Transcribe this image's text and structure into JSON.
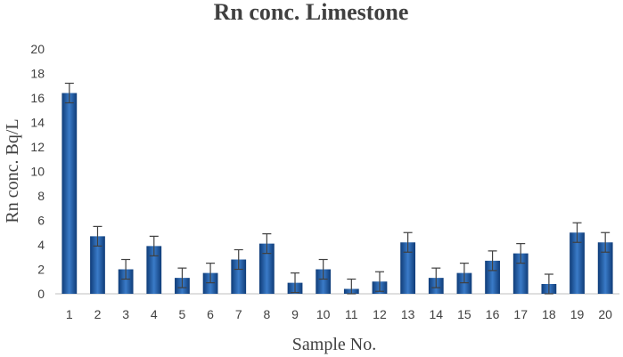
{
  "chart_data": {
    "type": "bar",
    "title": "Rn conc. Limestone",
    "xlabel": "Sample No.",
    "ylabel": "Rn conc. Bq/L",
    "categories": [
      "1",
      "2",
      "3",
      "4",
      "5",
      "6",
      "7",
      "8",
      "9",
      "10",
      "11",
      "12",
      "13",
      "14",
      "15",
      "16",
      "17",
      "18",
      "19",
      "20"
    ],
    "values": [
      16.4,
      4.7,
      2.0,
      3.9,
      1.3,
      1.7,
      2.8,
      4.1,
      0.9,
      2.0,
      0.4,
      1.0,
      4.2,
      1.3,
      1.7,
      2.7,
      3.3,
      0.8,
      5.0,
      4.2
    ],
    "error": [
      0.8,
      0.8,
      0.8,
      0.8,
      0.8,
      0.8,
      0.8,
      0.8,
      0.8,
      0.8,
      0.8,
      0.8,
      0.8,
      0.8,
      0.8,
      0.8,
      0.8,
      0.8,
      0.8,
      0.8
    ],
    "ylim": [
      0,
      20
    ],
    "yticks": [
      "0",
      "2",
      "4",
      "6",
      "8",
      "10",
      "12",
      "14",
      "16",
      "18",
      "20"
    ],
    "grid": false,
    "colors": {
      "bar_light": "#3a7bc8",
      "bar_dark": "#0f3c78",
      "error_bar": "#404040",
      "axis": "#bfbfbf",
      "text": "#404040"
    }
  }
}
